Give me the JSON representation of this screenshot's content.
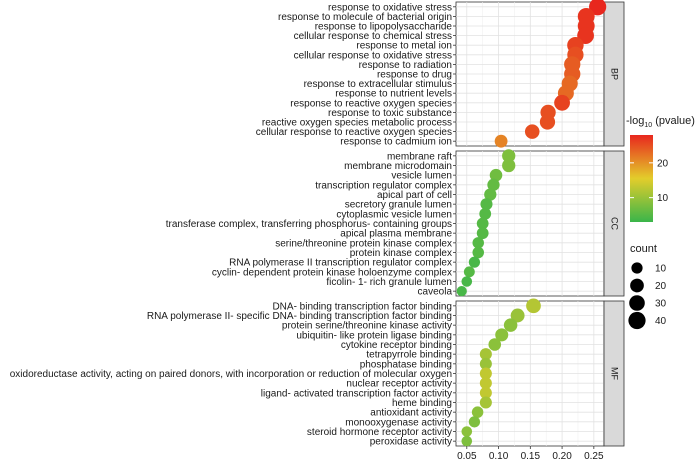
{
  "chart_data": {
    "type": "scatter",
    "x_ticks": [
      0.05,
      0.1,
      0.15,
      0.2,
      0.25
    ],
    "xlim": [
      0.033,
      0.266
    ],
    "grid": true,
    "legend_placement": "right",
    "color_legend": {
      "title_main": "-log",
      "title_sub": "10",
      "title_end": " (pvalue)",
      "ticks": [
        10,
        20
      ],
      "range": [
        3,
        28
      ],
      "low_color": "#3ab54a",
      "mid_color": "#e3cd2b",
      "high_color": "#e8271e"
    },
    "size_legend": {
      "title": "count",
      "values": [
        10,
        20,
        30,
        40
      ]
    },
    "panels": [
      {
        "name": "BP",
        "terms": [
          {
            "label": "response to oxidative stress",
            "x": 0.256,
            "pval": 28,
            "count": 40
          },
          {
            "label": "response to molecule of bacterial origin",
            "x": 0.238,
            "pval": 27,
            "count": 38
          },
          {
            "label": "response to lipopolysaccharide",
            "x": 0.238,
            "pval": 27,
            "count": 38
          },
          {
            "label": "cellular response to chemical stress",
            "x": 0.237,
            "pval": 27,
            "count": 37
          },
          {
            "label": "response to metal ion",
            "x": 0.221,
            "pval": 26,
            "count": 35
          },
          {
            "label": "cellular response to oxidative stress",
            "x": 0.221,
            "pval": 25,
            "count": 34
          },
          {
            "label": "response to radiation",
            "x": 0.216,
            "pval": 24,
            "count": 34
          },
          {
            "label": "response to drug",
            "x": 0.216,
            "pval": 24,
            "count": 34
          },
          {
            "label": "response to extracellular stimulus",
            "x": 0.212,
            "pval": 23,
            "count": 33
          },
          {
            "label": "response to nutrient levels",
            "x": 0.206,
            "pval": 23,
            "count": 32
          },
          {
            "label": "response to reactive oxygen species",
            "x": 0.2,
            "pval": 26,
            "count": 31
          },
          {
            "label": "response to toxic substance",
            "x": 0.178,
            "pval": 25,
            "count": 28
          },
          {
            "label": "reactive oxygen species metabolic process",
            "x": 0.177,
            "pval": 25,
            "count": 28
          },
          {
            "label": "cellular response to reactive oxygen species",
            "x": 0.153,
            "pval": 25,
            "count": 24
          },
          {
            "label": "response to cadmium ion",
            "x": 0.104,
            "pval": 21,
            "count": 16
          }
        ]
      },
      {
        "name": "CC",
        "terms": [
          {
            "label": "membrane raft",
            "x": 0.116,
            "pval": 8,
            "count": 18
          },
          {
            "label": "membrane microdomain",
            "x": 0.116,
            "pval": 8,
            "count": 18
          },
          {
            "label": "vesicle lumen",
            "x": 0.096,
            "pval": 7,
            "count": 15
          },
          {
            "label": "transcription regulator complex",
            "x": 0.092,
            "pval": 6,
            "count": 14
          },
          {
            "label": "apical part of cell",
            "x": 0.087,
            "pval": 6,
            "count": 14
          },
          {
            "label": "secretory granule lumen",
            "x": 0.081,
            "pval": 5,
            "count": 13
          },
          {
            "label": "cytoplasmic vesicle lumen",
            "x": 0.079,
            "pval": 5,
            "count": 12
          },
          {
            "label": "transferase complex, transferring phosphorus- containing groups",
            "x": 0.075,
            "pval": 5,
            "count": 12
          },
          {
            "label": "apical plasma membrane",
            "x": 0.075,
            "pval": 5,
            "count": 12
          },
          {
            "label": "serine/threonine protein kinase complex",
            "x": 0.068,
            "pval": 5,
            "count": 11
          },
          {
            "label": "protein kinase complex",
            "x": 0.068,
            "pval": 5,
            "count": 11
          },
          {
            "label": "RNA polymerase II transcription regulator complex",
            "x": 0.062,
            "pval": 4,
            "count": 10
          },
          {
            "label": "cyclin- dependent protein kinase holoenzyme complex",
            "x": 0.054,
            "pval": 5,
            "count": 9
          },
          {
            "label": "ficolin- 1- rich granule lumen",
            "x": 0.05,
            "pval": 4,
            "count": 8
          },
          {
            "label": "caveola",
            "x": 0.042,
            "pval": 4,
            "count": 7
          }
        ]
      },
      {
        "name": "MF",
        "terms": [
          {
            "label": "DNA- binding transcription factor binding",
            "x": 0.155,
            "pval": 12,
            "count": 25
          },
          {
            "label": "RNA polymerase II- specific DNA- binding transcription factor binding",
            "x": 0.13,
            "pval": 10,
            "count": 21
          },
          {
            "label": "protein serine/threonine kinase activity",
            "x": 0.119,
            "pval": 9,
            "count": 19
          },
          {
            "label": "ubiquitin- like protein ligase binding",
            "x": 0.105,
            "pval": 9,
            "count": 17
          },
          {
            "label": "cytokine receptor binding",
            "x": 0.094,
            "pval": 9,
            "count": 15
          },
          {
            "label": "tetrapyrrole binding",
            "x": 0.08,
            "pval": 11,
            "count": 13
          },
          {
            "label": "phosphatase binding",
            "x": 0.08,
            "pval": 10,
            "count": 13
          },
          {
            "label": "oxidoreductase activity, acting on paired donors, with incorporation or reduction of molecular oxygen",
            "x": 0.08,
            "pval": 13,
            "count": 13
          },
          {
            "label": "nuclear receptor activity",
            "x": 0.08,
            "pval": 13,
            "count": 13
          },
          {
            "label": "ligand- activated transcription factor activity",
            "x": 0.08,
            "pval": 13,
            "count": 13
          },
          {
            "label": "heme binding",
            "x": 0.08,
            "pval": 11,
            "count": 13
          },
          {
            "label": "antioxidant activity",
            "x": 0.067,
            "pval": 9,
            "count": 11
          },
          {
            "label": "monooxygenase activity",
            "x": 0.062,
            "pval": 8,
            "count": 10
          },
          {
            "label": "steroid hormone receptor activity",
            "x": 0.05,
            "pval": 9,
            "count": 8
          },
          {
            "label": "peroxidase activity",
            "x": 0.05,
            "pval": 8,
            "count": 8
          }
        ]
      }
    ]
  }
}
